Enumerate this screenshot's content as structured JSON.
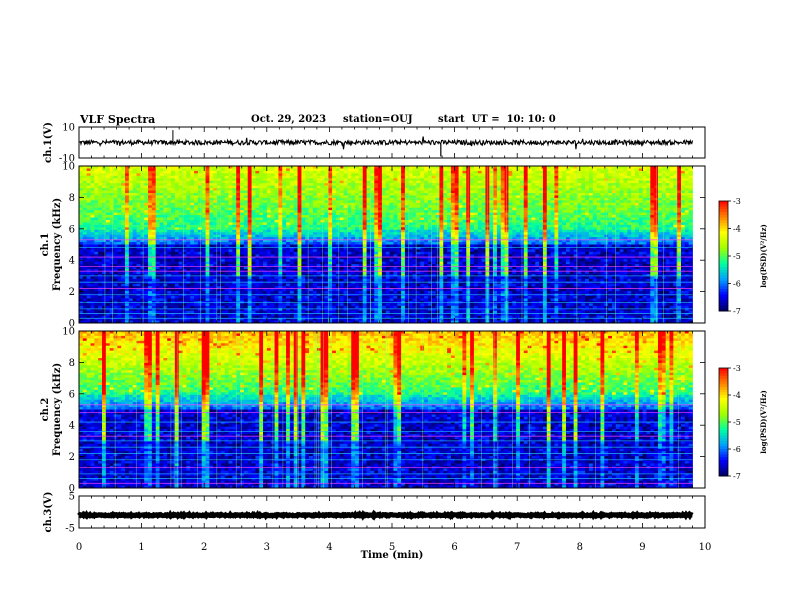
{
  "header": {
    "title": "VLF Spectra",
    "date": "Oct. 29, 2023",
    "station": "station=OUJ",
    "start": "start  UT =  10: 10: 0"
  },
  "chart_data": [
    {
      "type": "line",
      "id": "ch1-waveform",
      "ylabel": "ch.1(V)",
      "ylim": [
        -10,
        10
      ],
      "yticks": [
        "10",
        "-10"
      ],
      "description_values": {
        "mean": 0,
        "amplitude": 1.5
      },
      "x_range": [
        0,
        9.8
      ]
    },
    {
      "type": "heatmap",
      "id": "ch1-spectrogram",
      "ylabel_top": "ch.1",
      "ylabel": "Frequency  (kHz)",
      "ylim": [
        0,
        10
      ],
      "yticks": [
        "0",
        "2",
        "4",
        "6",
        "8",
        "10"
      ],
      "x_range": [
        0,
        9.8
      ],
      "colorbar": {
        "label": "log(PSD)(V²/Hz)",
        "ticks": [
          "-3",
          "-4",
          "-5",
          "-6",
          "-7"
        ],
        "range": [
          -7,
          -3
        ]
      }
    },
    {
      "type": "heatmap",
      "id": "ch2-spectrogram",
      "ylabel_top": "ch.2",
      "ylabel": "Frequency  (kHz)",
      "ylim": [
        0,
        10
      ],
      "yticks": [
        "0",
        "2",
        "4",
        "6",
        "8",
        "10"
      ],
      "x_range": [
        0,
        9.8
      ],
      "colorbar": {
        "label": "log(PSD)(V²/Hz)",
        "ticks": [
          "-3",
          "-4",
          "-5",
          "-6",
          "-7"
        ],
        "range": [
          -7,
          -3
        ]
      }
    },
    {
      "type": "line",
      "id": "ch3-waveform",
      "ylabel": "ch.3(V)",
      "ylim": [
        -5,
        5
      ],
      "yticks": [
        "5",
        "-5"
      ],
      "description_values": {
        "mean": -1,
        "amplitude": 0.2
      },
      "x_range": [
        0,
        9.8
      ]
    }
  ],
  "xaxis": {
    "label": "Time  (min)",
    "ticks": [
      "0",
      "1",
      "2",
      "3",
      "4",
      "5",
      "6",
      "7",
      "8",
      "9",
      "10"
    ],
    "xlim": [
      0,
      10
    ]
  },
  "colors": {
    "colormap": [
      "#000060",
      "#0000ff",
      "#00a0ff",
      "#00ffa0",
      "#a0ff00",
      "#ffff00",
      "#ff8000",
      "#ff0000",
      "#ffffff"
    ]
  }
}
